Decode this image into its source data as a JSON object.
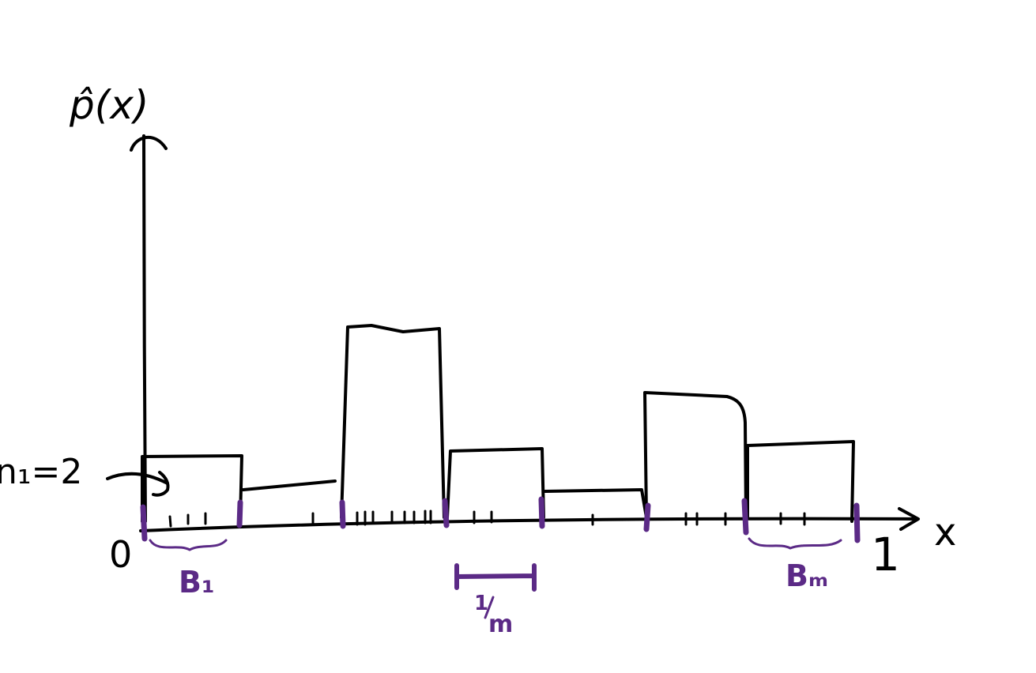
{
  "labels": {
    "y_axis": "p̂(x)",
    "x_axis": "x",
    "origin": "0",
    "one": "1",
    "n1": "n₁=2",
    "b1": "B₁",
    "bm": "Bₘ",
    "bin_width_num": "1",
    "bin_width_den": "m"
  },
  "colors": {
    "ink": "#000000",
    "accent": "#5b2a86"
  }
}
